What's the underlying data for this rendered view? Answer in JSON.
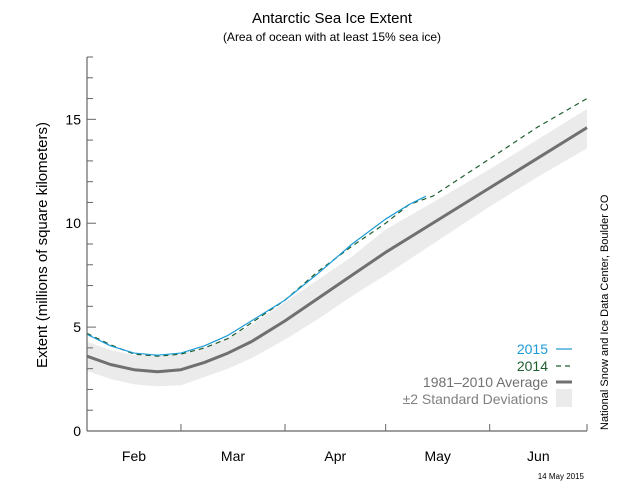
{
  "chart_data": {
    "type": "line",
    "title": "Antarctic Sea Ice Extent",
    "subtitle": "(Area of ocean with at least 15% sea ice)",
    "ylabel": "Extent (millions of square kilometers)",
    "xlabel": "",
    "ylim": [
      0,
      18
    ],
    "xlim": [
      "02-01",
      "06-30"
    ],
    "yticks": [
      0,
      5,
      10,
      15
    ],
    "xtick_labels": [
      "Feb",
      "Mar",
      "Apr",
      "May",
      "Jun"
    ],
    "grid": false,
    "legend_position": "bottom-right",
    "credit": "National Snow and Ice Data Center, Boulder CO",
    "date_stamp": "14 May 2015",
    "series": [
      {
        "name": "2015",
        "color": "#1a9ad6",
        "style": "solid",
        "x": [
          "02-01",
          "02-08",
          "02-15",
          "02-22",
          "03-01",
          "03-08",
          "03-15",
          "03-22",
          "04-01",
          "04-11",
          "04-21",
          "05-01",
          "05-08",
          "05-13"
        ],
        "y": [
          4.65,
          4.1,
          3.75,
          3.65,
          3.75,
          4.1,
          4.6,
          5.3,
          6.3,
          7.6,
          9.0,
          10.2,
          10.9,
          11.3
        ]
      },
      {
        "name": "2014",
        "color": "#1d5e2e",
        "style": "dashed",
        "x": [
          "02-01",
          "02-08",
          "02-15",
          "02-22",
          "03-01",
          "03-08",
          "03-15",
          "03-22",
          "04-01",
          "04-11",
          "04-21",
          "05-01",
          "05-08",
          "05-15",
          "06-01",
          "06-15",
          "06-30"
        ],
        "y": [
          4.7,
          4.15,
          3.7,
          3.6,
          3.7,
          4.0,
          4.45,
          5.2,
          6.3,
          7.7,
          8.9,
          10.0,
          10.9,
          11.3,
          13.1,
          14.6,
          16.0
        ]
      },
      {
        "name": "1981–2010 Average",
        "color": "#707070",
        "style": "thick",
        "x": [
          "02-01",
          "02-08",
          "02-15",
          "02-22",
          "03-01",
          "03-08",
          "03-15",
          "03-22",
          "04-01",
          "04-11",
          "04-21",
          "05-01",
          "05-15",
          "06-01",
          "06-15",
          "06-30"
        ],
        "y": [
          3.6,
          3.2,
          2.95,
          2.85,
          2.95,
          3.3,
          3.75,
          4.3,
          5.3,
          6.4,
          7.5,
          8.6,
          10.0,
          11.7,
          13.1,
          14.6
        ]
      },
      {
        "name": "±2 Standard Deviations",
        "color": "#ebebeb",
        "style": "band",
        "x": [
          "02-01",
          "02-08",
          "02-15",
          "02-22",
          "03-01",
          "03-08",
          "03-15",
          "03-22",
          "04-01",
          "04-11",
          "04-21",
          "05-01",
          "05-15",
          "06-01",
          "06-15",
          "06-30"
        ],
        "upper": [
          4.3,
          3.9,
          3.65,
          3.6,
          3.7,
          4.0,
          4.5,
          5.1,
          6.2,
          7.3,
          8.4,
          9.7,
          11.0,
          12.6,
          14.0,
          15.5
        ],
        "lower": [
          2.9,
          2.5,
          2.25,
          2.15,
          2.2,
          2.6,
          3.0,
          3.5,
          4.4,
          5.4,
          6.5,
          7.5,
          9.0,
          10.8,
          12.2,
          13.6
        ]
      }
    ]
  }
}
